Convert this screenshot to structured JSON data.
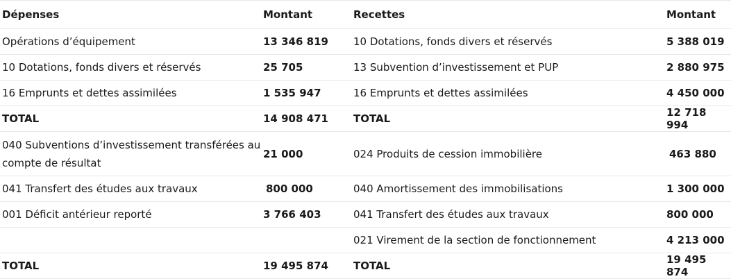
{
  "header": {
    "depenses": "Dépenses",
    "montant_left": "Montant",
    "recettes": "Recettes",
    "montant_right": "Montant"
  },
  "rows": [
    {
      "dep_label": "Opérations d’équipement",
      "dep_amount": "13 346 819",
      "rec_label": "10 Dotations, fonds divers et réservés",
      "rec_amount": "5 388 019"
    },
    {
      "dep_label": "10 Dotations, fonds divers et réservés",
      "dep_amount": "25 705",
      "rec_label": "13 Subvention d’investissement et PUP",
      "rec_amount": "2 880 975"
    },
    {
      "dep_label": "16 Emprunts et dettes assimilées",
      "dep_amount": "1 535 947",
      "rec_label": "16 Emprunts et dettes assimilées",
      "rec_amount": "4 450 000"
    },
    {
      "dep_label": "TOTAL",
      "dep_amount": "14 908 471",
      "rec_label": "TOTAL",
      "rec_amount": "12 718 994"
    },
    {
      "dep_label": "040 Subventions d’investissement transférées au compte de résultat",
      "dep_amount": "21 000",
      "rec_label": "024 Produits de cession immobilière",
      "rec_amount": "463 880"
    },
    {
      "dep_label": "041 Transfert des études aux travaux",
      "dep_amount": "800 000",
      "rec_label": "040 Amortissement des immobilisations",
      "rec_amount": "1 300 000"
    },
    {
      "dep_label": "001 Déficit antérieur reporté",
      "dep_amount": "3 766 403",
      "rec_label": "041 Transfert des études aux travaux",
      "rec_amount": "800 000"
    },
    {
      "dep_label": "",
      "dep_amount": "",
      "rec_label": "021 Virement de la section de fonctionnement",
      "rec_amount": "4 213 000"
    },
    {
      "dep_label": "TOTAL",
      "dep_amount": "19 495 874",
      "rec_label": "TOTAL",
      "rec_amount": "19 495 874"
    }
  ]
}
